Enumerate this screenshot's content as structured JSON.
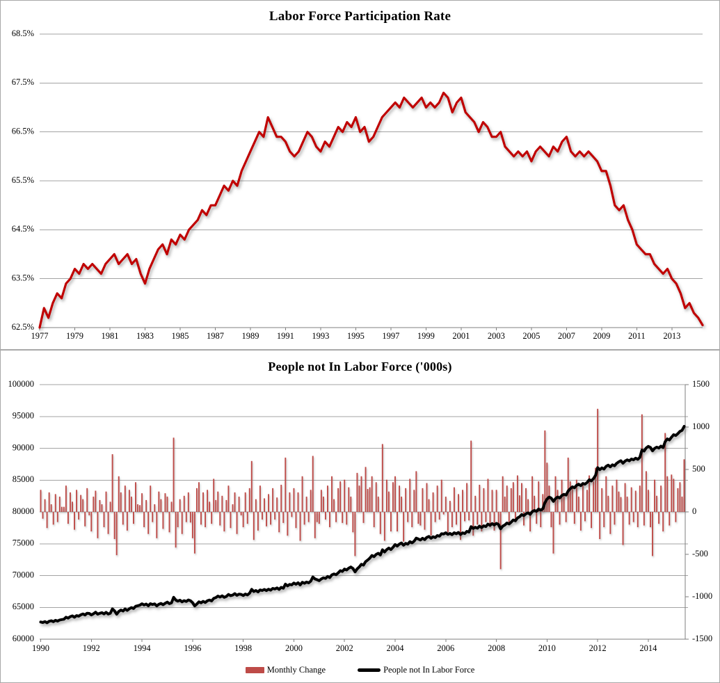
{
  "colors": {
    "lfpr_line": "#C00000",
    "bar": "#BE4B48",
    "nilf_line": "#000000",
    "grid": "#a3a3a3",
    "panel_border": "#a8a8a8"
  },
  "legend": {
    "monthly_change_label": "Monthly Change",
    "nilf_label": "People not In Labor Force"
  },
  "chart_data": [
    {
      "type": "line",
      "title": "Labor Force Participation Rate",
      "xlabel": "",
      "ylabel": "",
      "ylim": [
        62.5,
        68.5
      ],
      "grid": true,
      "y_tick_labels": [
        "68.5%",
        "67.5%",
        "66.5%",
        "65.5%",
        "64.5%",
        "63.5%",
        "62.5%"
      ],
      "x_tick_years": [
        1977,
        1979,
        1981,
        1983,
        1985,
        1987,
        1989,
        1991,
        1993,
        1995,
        1997,
        1999,
        2001,
        2003,
        2005,
        2007,
        2009,
        2011,
        2013
      ],
      "x_start_year": 1977,
      "points_per_year": 4,
      "series": [
        {
          "name": "Labor Force Participation Rate",
          "unit": "percent",
          "values": [
            62.5,
            62.9,
            62.7,
            63.0,
            63.2,
            63.1,
            63.4,
            63.5,
            63.7,
            63.6,
            63.8,
            63.7,
            63.8,
            63.7,
            63.6,
            63.8,
            63.9,
            64.0,
            63.8,
            63.9,
            64.0,
            63.8,
            63.9,
            63.6,
            63.4,
            63.7,
            63.9,
            64.1,
            64.2,
            64.0,
            64.3,
            64.2,
            64.4,
            64.3,
            64.5,
            64.6,
            64.7,
            64.9,
            64.8,
            65.0,
            65.0,
            65.2,
            65.4,
            65.3,
            65.5,
            65.4,
            65.7,
            65.9,
            66.1,
            66.3,
            66.5,
            66.4,
            66.8,
            66.6,
            66.4,
            66.4,
            66.3,
            66.1,
            66.0,
            66.1,
            66.3,
            66.5,
            66.4,
            66.2,
            66.1,
            66.3,
            66.2,
            66.4,
            66.6,
            66.5,
            66.7,
            66.6,
            66.8,
            66.5,
            66.6,
            66.3,
            66.4,
            66.6,
            66.8,
            66.9,
            67.0,
            67.1,
            67.0,
            67.2,
            67.1,
            67.0,
            67.1,
            67.2,
            67.0,
            67.1,
            67.0,
            67.1,
            67.3,
            67.2,
            66.9,
            67.1,
            67.2,
            66.9,
            66.8,
            66.7,
            66.5,
            66.7,
            66.6,
            66.4,
            66.4,
            66.5,
            66.2,
            66.1,
            66.0,
            66.1,
            66.0,
            66.1,
            65.9,
            66.1,
            66.2,
            66.1,
            66.0,
            66.2,
            66.1,
            66.3,
            66.4,
            66.1,
            66.0,
            66.1,
            66.0,
            66.1,
            66.0,
            65.9,
            65.7,
            65.7,
            65.4,
            65.0,
            64.9,
            65.0,
            64.7,
            64.5,
            64.2,
            64.1,
            64.0,
            64.0,
            63.8,
            63.7,
            63.6,
            63.7,
            63.5,
            63.4,
            63.2,
            62.9,
            63.0,
            62.8,
            62.7,
            62.55
          ]
        }
      ]
    },
    {
      "type": "bar+line",
      "title": "People not In Labor Force ('000s)",
      "left_axis": {
        "ylim": [
          60000,
          100000
        ],
        "tick_labels": [
          "100000",
          "95000",
          "90000",
          "85000",
          "80000",
          "75000",
          "70000",
          "65000",
          "60000"
        ]
      },
      "right_axis": {
        "ylim": [
          -1500,
          1500
        ],
        "tick_labels": [
          "1500",
          "1000",
          "500",
          "0",
          "-500",
          "-1000",
          "-1500"
        ]
      },
      "x_tick_years": [
        1990,
        1992,
        1994,
        1996,
        1998,
        2000,
        2002,
        2004,
        2006,
        2008,
        2010,
        2012,
        2014
      ],
      "x_start_year": 1990,
      "points_per_year": 12,
      "nilf_start_value": 62700,
      "line_series_derivation": "people_not_in_labor_force[i] = nilf_start_value + cumulative sum of monthly_change[0..i]",
      "monthly_change": [
        260,
        -80,
        150,
        -190,
        230,
        90,
        -150,
        210,
        -120,
        180,
        60,
        60,
        310,
        -140,
        230,
        120,
        -210,
        260,
        -90,
        200,
        150,
        -170,
        280,
        -40,
        -230,
        180,
        250,
        -310,
        140,
        90,
        -180,
        240,
        -260,
        120,
        680,
        -320,
        -510,
        420,
        230,
        -150,
        310,
        -220,
        260,
        180,
        -140,
        350,
        90,
        80,
        220,
        -180,
        140,
        -260,
        310,
        -120,
        90,
        -310,
        240,
        150,
        -200,
        220,
        180,
        -240,
        120,
        875,
        -420,
        -180,
        150,
        -260,
        190,
        -120,
        230,
        -125,
        -310,
        -490,
        280,
        350,
        -150,
        230,
        -180,
        260,
        120,
        -140,
        390,
        140,
        240,
        -160,
        190,
        -230,
        140,
        310,
        -190,
        90,
        230,
        -260,
        180,
        -40,
        -180,
        230,
        -140,
        280,
        600,
        -330,
        150,
        -220,
        310,
        -90,
        160,
        -170,
        210,
        -150,
        280,
        -90,
        170,
        -240,
        320,
        -130,
        640,
        -280,
        230,
        -60,
        280,
        -190,
        230,
        -340,
        420,
        -150,
        180,
        -120,
        260,
        660,
        -310,
        -120,
        -140,
        260,
        180,
        -90,
        310,
        -180,
        420,
        150,
        -120,
        280,
        360,
        -130,
        380,
        -150,
        290,
        180,
        -240,
        -520,
        460,
        310,
        420,
        -130,
        530,
        270,
        290,
        420,
        -180,
        350,
        180,
        -260,
        800,
        -340,
        380,
        240,
        -230,
        350,
        420,
        -230,
        310,
        180,
        -350,
        280,
        -120,
        390,
        -180,
        260,
        480,
        -140,
        -160,
        280,
        -210,
        340,
        150,
        -280,
        230,
        -120,
        310,
        -90,
        380,
        -30,
        180,
        -240,
        130,
        -180,
        290,
        -150,
        210,
        -330,
        260,
        -110,
        340,
        -100,
        840,
        -280,
        190,
        -150,
        320,
        -230,
        280,
        -120,
        390,
        -180,
        260,
        -220,
        260,
        -180,
        -675,
        420,
        180,
        310,
        -150,
        280,
        350,
        -120,
        430,
        195,
        340,
        -160,
        280,
        150,
        -230,
        420,
        190,
        -140,
        360,
        -180,
        210,
        960,
        580,
        310,
        -180,
        -490,
        420,
        260,
        -150,
        380,
        190,
        -120,
        640,
        360,
        290,
        -140,
        380,
        180,
        -220,
        340,
        -110,
        260,
        430,
        -190,
        360,
        520,
        1215,
        -320,
        280,
        -180,
        420,
        190,
        -260,
        310,
        -150,
        380,
        240,
        175,
        -390,
        340,
        180,
        -150,
        290,
        -120,
        250,
        -180,
        310,
        1150,
        -160,
        480,
        260,
        -180,
        -520,
        380,
        190,
        -140,
        310,
        -230,
        930,
        420,
        -160,
        440,
        390,
        -120,
        280,
        350,
        180,
        620
      ]
    }
  ]
}
